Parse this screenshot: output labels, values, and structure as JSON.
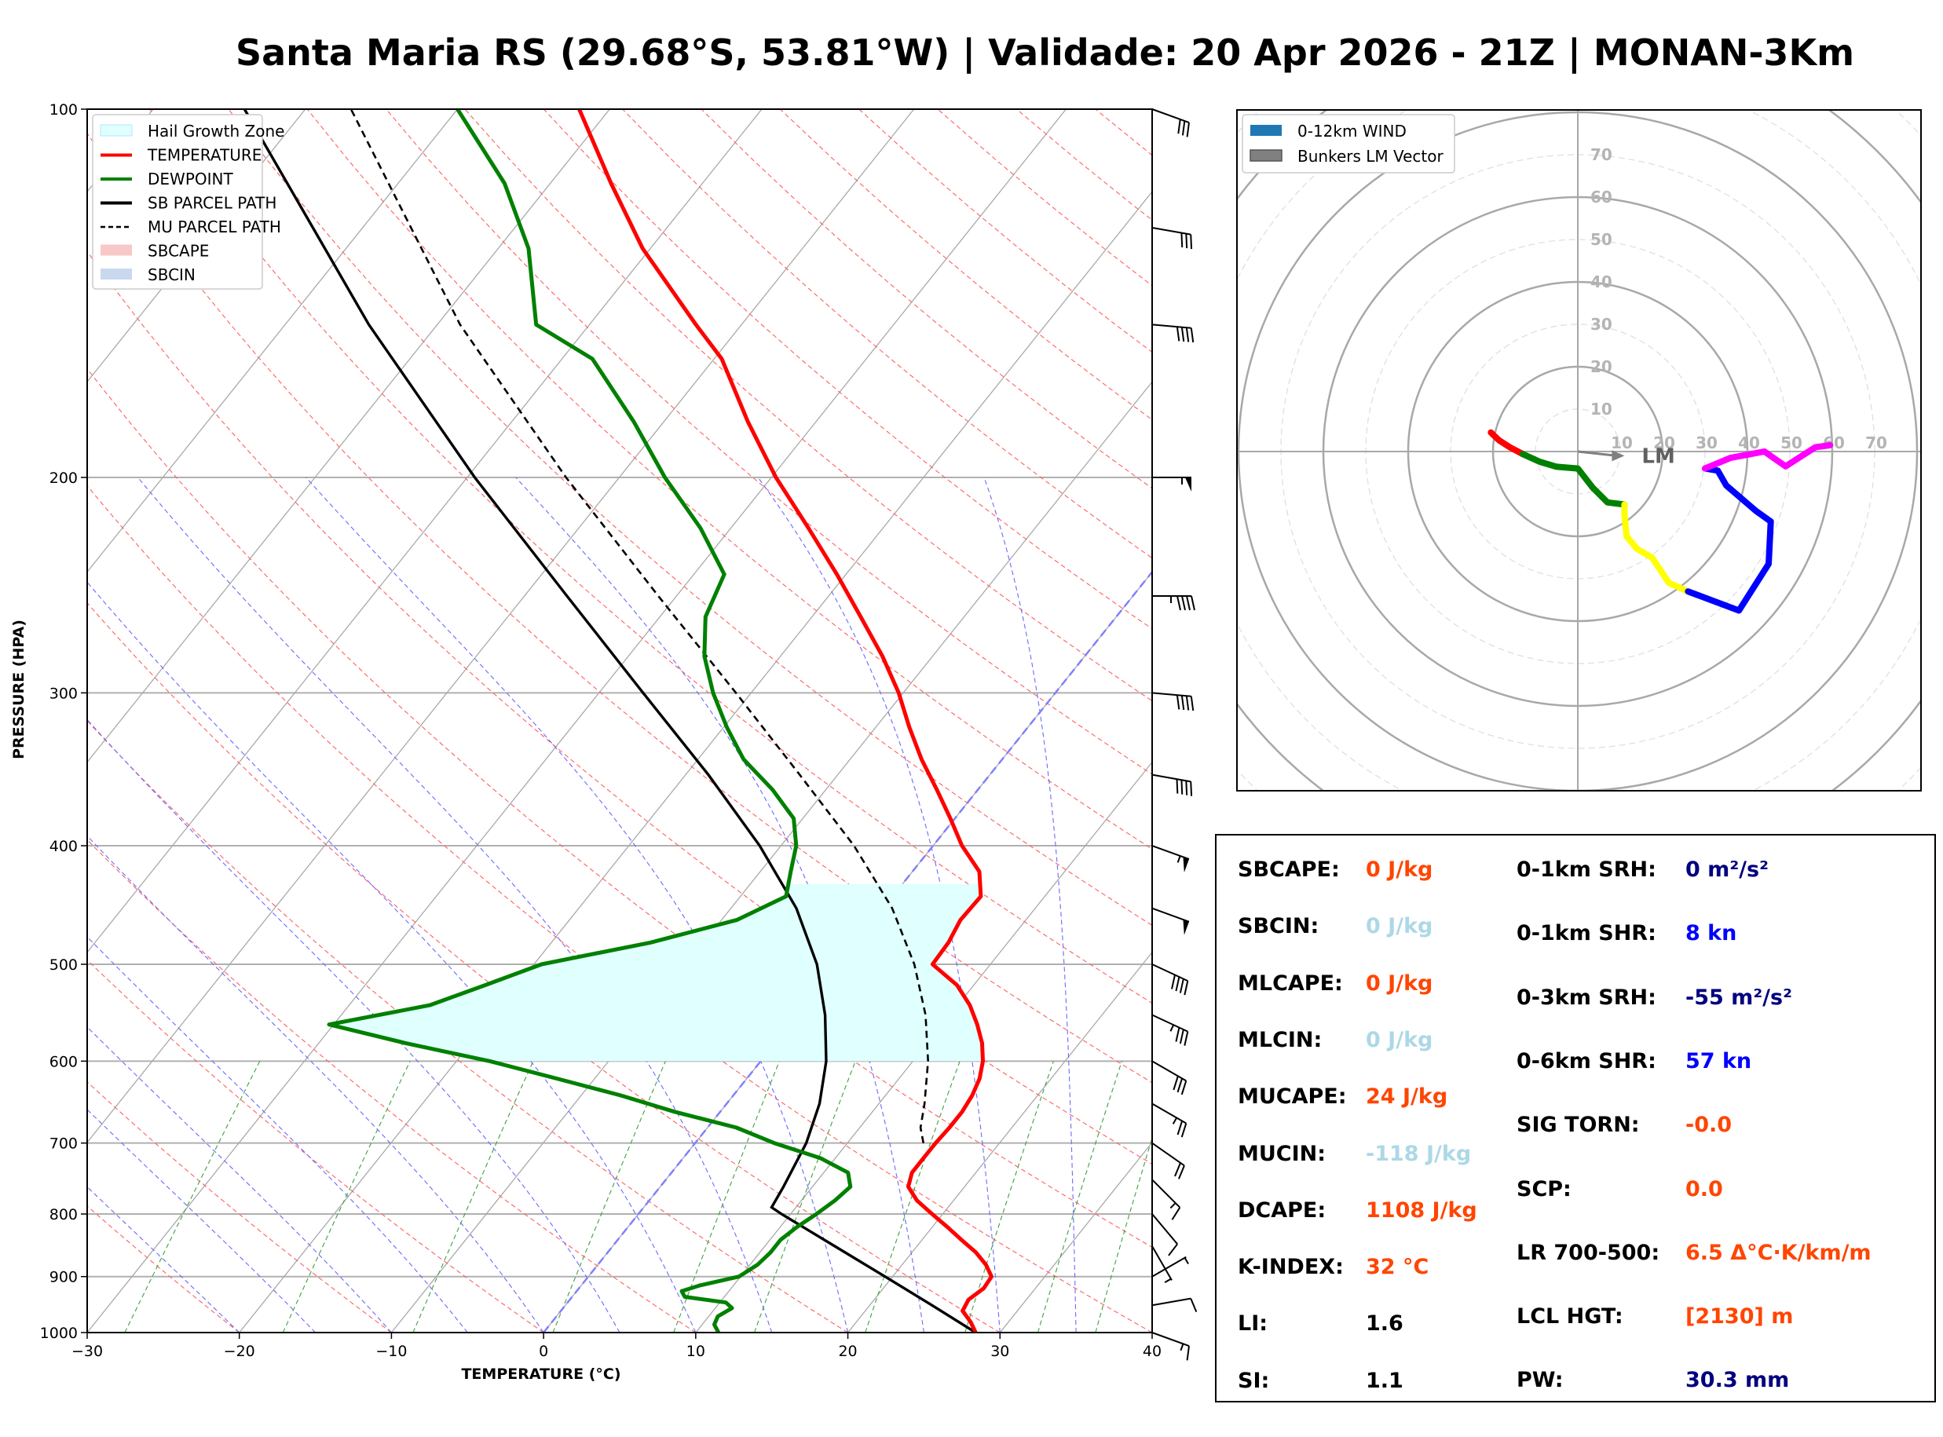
{
  "title": "Santa Maria RS (29.68°S, 53.81°W) | Validade: 20 Apr 2026 - 21Z | MONAN-3Km",
  "chart_data": [
    {
      "type": "skewt",
      "xlabel": "TEMPERATURE (°C)",
      "ylabel": "PRESSURE (HPA)",
      "xlim": [
        -30,
        40
      ],
      "ylim": [
        1000,
        100
      ],
      "x_ticks": [
        "−30",
        "−20",
        "−10",
        "0",
        "10",
        "20",
        "30",
        "40"
      ],
      "x_tick_values": [
        -30,
        -20,
        -10,
        0,
        10,
        20,
        30,
        40
      ],
      "y_ticks": [
        "1000",
        "900",
        "800",
        "700",
        "600",
        "500",
        "400",
        "300",
        "200",
        "100"
      ],
      "y_tick_values": [
        1000,
        900,
        800,
        700,
        600,
        500,
        400,
        300,
        200,
        100
      ],
      "legend": [
        {
          "label": "Hail Growth Zone",
          "color": "#e0ffff",
          "style": "patch"
        },
        {
          "label": "TEMPERATURE",
          "color": "#ff0000",
          "style": "line"
        },
        {
          "label": "DEWPOINT",
          "color": "#008000",
          "style": "line"
        },
        {
          "label": "SB PARCEL PATH",
          "color": "#000000",
          "style": "line"
        },
        {
          "label": "MU PARCEL PATH",
          "color": "#000000",
          "style": "dashed"
        },
        {
          "label": "SBCAPE",
          "color": "#f8c8c8",
          "style": "patch"
        },
        {
          "label": "SBCIN",
          "color": "#c8d8ee",
          "style": "patch"
        }
      ],
      "temperature": [
        [
          1000,
          28.4
        ],
        [
          980,
          27.5
        ],
        [
          960,
          26.4
        ],
        [
          940,
          26.2
        ],
        [
          920,
          26.6
        ],
        [
          900,
          26.5
        ],
        [
          880,
          25.5
        ],
        [
          860,
          24.2
        ],
        [
          840,
          22.6
        ],
        [
          820,
          21.0
        ],
        [
          800,
          19.3
        ],
        [
          780,
          17.6
        ],
        [
          760,
          16.3
        ],
        [
          740,
          15.8
        ],
        [
          720,
          15.8
        ],
        [
          700,
          15.8
        ],
        [
          680,
          15.9
        ],
        [
          660,
          15.9
        ],
        [
          640,
          15.7
        ],
        [
          620,
          15.3
        ],
        [
          600,
          14.6
        ],
        [
          580,
          13.6
        ],
        [
          560,
          12.3
        ],
        [
          540,
          10.8
        ],
        [
          520,
          8.9
        ],
        [
          500,
          6.2
        ],
        [
          480,
          6.1
        ],
        [
          460,
          5.7
        ],
        [
          440,
          5.8
        ],
        [
          420,
          4.4
        ],
        [
          400,
          1.9
        ],
        [
          380,
          -0.3
        ],
        [
          360,
          -2.7
        ],
        [
          340,
          -5.3
        ],
        [
          320,
          -7.8
        ],
        [
          300,
          -10.3
        ],
        [
          280,
          -13.3
        ],
        [
          260,
          -16.8
        ],
        [
          240,
          -20.6
        ],
        [
          220,
          -24.9
        ],
        [
          200,
          -29.7
        ],
        [
          180,
          -34.5
        ],
        [
          160,
          -39.5
        ],
        [
          150,
          -43.0
        ],
        [
          130,
          -50.5
        ],
        [
          115,
          -56.0
        ],
        [
          100,
          -62.0
        ]
      ],
      "dewpoint": [
        [
          1000,
          11.5
        ],
        [
          985,
          10.8
        ],
        [
          970,
          10.6
        ],
        [
          955,
          11.1
        ],
        [
          945,
          10.4
        ],
        [
          935,
          7.4
        ],
        [
          925,
          6.9
        ],
        [
          915,
          7.8
        ],
        [
          900,
          9.9
        ],
        [
          880,
          10.5
        ],
        [
          860,
          10.7
        ],
        [
          840,
          10.7
        ],
        [
          820,
          11.1
        ],
        [
          800,
          11.7
        ],
        [
          780,
          12.2
        ],
        [
          760,
          12.5
        ],
        [
          740,
          11.6
        ],
        [
          720,
          9.0
        ],
        [
          700,
          5.2
        ],
        [
          680,
          1.9
        ],
        [
          660,
          -3.0
        ],
        [
          640,
          -7.4
        ],
        [
          620,
          -12.5
        ],
        [
          600,
          -17.8
        ],
        [
          580,
          -24.3
        ],
        [
          560,
          -30.3
        ],
        [
          540,
          -24.7
        ],
        [
          520,
          -22.1
        ],
        [
          500,
          -19.5
        ],
        [
          480,
          -13.5
        ],
        [
          460,
          -9.0
        ],
        [
          440,
          -7.0
        ],
        [
          420,
          -8.0
        ],
        [
          400,
          -9.0
        ],
        [
          380,
          -10.6
        ],
        [
          360,
          -13.5
        ],
        [
          340,
          -17.0
        ],
        [
          320,
          -19.8
        ],
        [
          300,
          -22.5
        ],
        [
          280,
          -25.0
        ],
        [
          260,
          -27.0
        ],
        [
          240,
          -28.0
        ],
        [
          220,
          -32.0
        ],
        [
          200,
          -37.0
        ],
        [
          180,
          -42.0
        ],
        [
          160,
          -48.0
        ],
        [
          150,
          -53.5
        ],
        [
          130,
          -58.0
        ],
        [
          115,
          -63.0
        ],
        [
          100,
          -70.0
        ]
      ],
      "sb_parcel": [
        [
          1000,
          28.4
        ],
        [
          950,
          24.1
        ],
        [
          900,
          19.5
        ],
        [
          850,
          14.6
        ],
        [
          800,
          9.4
        ],
        [
          790,
          8.4
        ],
        [
          760,
          8.1
        ],
        [
          700,
          7.3
        ],
        [
          650,
          6.1
        ],
        [
          600,
          4.3
        ],
        [
          550,
          1.8
        ],
        [
          500,
          -1.4
        ],
        [
          450,
          -5.7
        ],
        [
          400,
          -11.4
        ],
        [
          350,
          -18.5
        ],
        [
          300,
          -27.1
        ],
        [
          250,
          -37.2
        ],
        [
          200,
          -49.5
        ],
        [
          150,
          -64.5
        ],
        [
          100,
          -84.0
        ]
      ],
      "mu_parcel": [
        [
          700,
          15.0
        ],
        [
          680,
          14.0
        ],
        [
          650,
          13.0
        ],
        [
          600,
          11.0
        ],
        [
          550,
          8.4
        ],
        [
          500,
          5.0
        ],
        [
          450,
          0.6
        ],
        [
          400,
          -5.2
        ],
        [
          350,
          -12.5
        ],
        [
          300,
          -21.0
        ],
        [
          250,
          -31.2
        ],
        [
          200,
          -43.5
        ],
        [
          150,
          -58.5
        ],
        [
          100,
          -77.0
        ]
      ],
      "hail_growth_zone": {
        "p_bottom": 600,
        "p_top": 430
      },
      "wind_barbs": [
        {
          "p": 1000,
          "speed_kn": 15,
          "dir_deg": 290
        },
        {
          "p": 950,
          "speed_kn": 10,
          "dir_deg": 260
        },
        {
          "p": 900,
          "speed_kn": 5,
          "dir_deg": 240
        },
        {
          "p": 850,
          "speed_kn": 5,
          "dir_deg": 330
        },
        {
          "p": 800,
          "speed_kn": 10,
          "dir_deg": 320
        },
        {
          "p": 750,
          "speed_kn": 15,
          "dir_deg": 315
        },
        {
          "p": 700,
          "speed_kn": 20,
          "dir_deg": 305
        },
        {
          "p": 650,
          "speed_kn": 25,
          "dir_deg": 300
        },
        {
          "p": 600,
          "speed_kn": 30,
          "dir_deg": 300
        },
        {
          "p": 550,
          "speed_kn": 35,
          "dir_deg": 295
        },
        {
          "p": 500,
          "speed_kn": 40,
          "dir_deg": 295
        },
        {
          "p": 450,
          "speed_kn": 50,
          "dir_deg": 290
        },
        {
          "p": 400,
          "speed_kn": 55,
          "dir_deg": 290
        },
        {
          "p": 350,
          "speed_kn": 40,
          "dir_deg": 280
        },
        {
          "p": 300,
          "speed_kn": 40,
          "dir_deg": 275
        },
        {
          "p": 250,
          "speed_kn": 45,
          "dir_deg": 270
        },
        {
          "p": 200,
          "speed_kn": 55,
          "dir_deg": 270
        },
        {
          "p": 150,
          "speed_kn": 40,
          "dir_deg": 275
        },
        {
          "p": 125,
          "speed_kn": 30,
          "dir_deg": 280
        },
        {
          "p": 100,
          "speed_kn": 30,
          "dir_deg": 290
        }
      ]
    },
    {
      "type": "hodograph",
      "rings_kn": [
        10,
        20,
        30,
        40,
        50,
        60,
        70
      ],
      "ring_labels": [
        "10",
        "20",
        "30",
        "40",
        "50",
        "60",
        "70"
      ],
      "legend": [
        {
          "label": "0-12km WIND",
          "color": "#1f77b4"
        },
        {
          "label": "Bunkers LM Vector",
          "color": "#808080"
        }
      ],
      "lm_label": "LM",
      "lm_vector": [
        11,
        -1
      ],
      "segments": [
        {
          "color": "#ff0000",
          "points": [
            [
              -20.5,
              4.5
            ],
            [
              -19.8,
              3.8
            ],
            [
              -18.5,
              2.6
            ],
            [
              -16.0,
              1.0
            ],
            [
              -13.0,
              -0.6
            ]
          ]
        },
        {
          "color": "#008000",
          "points": [
            [
              -13.0,
              -0.6
            ],
            [
              -9.0,
              -2.4
            ],
            [
              -5.0,
              -3.6
            ],
            [
              0.0,
              -4.0
            ],
            [
              3.5,
              -8.5
            ],
            [
              7.0,
              -12.0
            ],
            [
              11.0,
              -12.5
            ]
          ]
        },
        {
          "color": "#ffff00",
          "points": [
            [
              11.0,
              -12.5
            ],
            [
              11.0,
              -15.0
            ],
            [
              11.5,
              -20.0
            ],
            [
              14.0,
              -23.0
            ],
            [
              17.5,
              -25.0
            ],
            [
              21.5,
              -31.0
            ],
            [
              26.0,
              -33.0
            ]
          ]
        },
        {
          "color": "#0000ff",
          "points": [
            [
              26.0,
              -33.0
            ],
            [
              38.0,
              -37.5
            ],
            [
              45.0,
              -26.5
            ],
            [
              45.5,
              -16.5
            ],
            [
              42.0,
              -14.0
            ],
            [
              35.0,
              -8.0
            ],
            [
              33.0,
              -4.5
            ],
            [
              30.0,
              -4.0
            ]
          ]
        },
        {
          "color": "#ff00ff",
          "points": [
            [
              30.0,
              -4.0
            ],
            [
              36.0,
              -1.5
            ],
            [
              44.0,
              0.0
            ],
            [
              49.0,
              -3.5
            ],
            [
              56.0,
              1.0
            ],
            [
              59.5,
              1.5
            ]
          ]
        }
      ]
    }
  ],
  "params": {
    "left": [
      {
        "label": "SBCAPE:",
        "value": "0 J/kg",
        "color": "#ff4500"
      },
      {
        "label": "SBCIN:",
        "value": "0 J/kg",
        "color": "#add8e6"
      },
      {
        "label": "MLCAPE:",
        "value": "0 J/kg",
        "color": "#ff4500"
      },
      {
        "label": "MLCIN:",
        "value": "0 J/kg",
        "color": "#add8e6"
      },
      {
        "label": "MUCAPE:",
        "value": "24 J/kg",
        "color": "#ff4500"
      },
      {
        "label": "MUCIN:",
        "value": "-118 J/kg",
        "color": "#add8e6"
      },
      {
        "label": "DCAPE:",
        "value": "1108 J/kg",
        "color": "#ff4500"
      },
      {
        "label": "K-INDEX:",
        "value": "32 °C",
        "color": "#ff4500"
      },
      {
        "label": "LI:",
        "value": "1.6",
        "color": "#000000"
      },
      {
        "label": "SI:",
        "value": "1.1",
        "color": "#000000"
      }
    ],
    "right": [
      {
        "label": "0-1km SRH:",
        "value": "0 m²/s²",
        "color": "#000080"
      },
      {
        "label": "0-1km SHR:",
        "value": "8 kn",
        "color": "#0000ff"
      },
      {
        "label": "0-3km SRH:",
        "value": "-55 m²/s²",
        "color": "#000080"
      },
      {
        "label": "0-6km SHR:",
        "value": "57 kn",
        "color": "#0000ff"
      },
      {
        "label": "SIG TORN:",
        "value": "-0.0",
        "color": "#ff4500"
      },
      {
        "label": "SCP:",
        "value": "0.0",
        "color": "#ff4500"
      },
      {
        "label": "LR 700-500:",
        "value": "6.5 Δ°C·K/km/m",
        "color": "#ff4500"
      },
      {
        "label": "LCL HGT:",
        "value": "[2130] m",
        "color": "#ff4500"
      },
      {
        "label": "PW:",
        "value": "30.3 mm",
        "color": "#000080"
      }
    ]
  }
}
